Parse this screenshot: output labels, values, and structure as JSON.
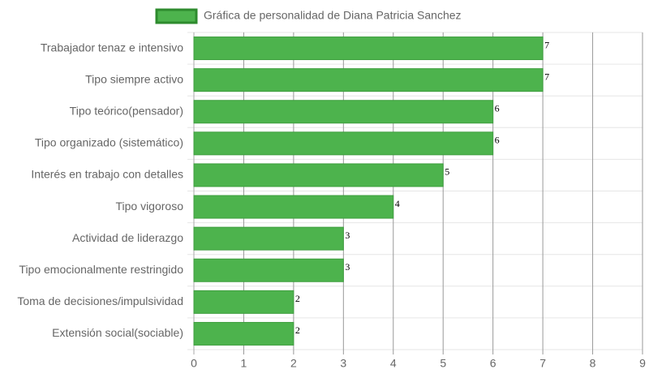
{
  "chart_data": {
    "type": "hbar",
    "categories": [
      "Trabajador tenaz e intensivo",
      "Tipo siempre activo",
      "Tipo teórico(pensador)",
      "Tipo organizado (sistemático)",
      "Interés en trabajo con detalles",
      "Tipo vigoroso",
      "Actividad de liderazgo",
      "Tipo emocionalmente restringido",
      "Toma de decisiones/impulsividad",
      "Extensión social(sociable)"
    ],
    "series": [
      {
        "name": "Gráfica de personalidad de Diana Patricia Sanchez",
        "color": "#4db34d",
        "values": [
          7,
          7,
          6,
          6,
          5,
          4,
          3,
          3,
          2,
          2
        ]
      }
    ],
    "xlim": [
      0,
      9
    ],
    "xticks": [
      0,
      1,
      2,
      3,
      4,
      5,
      6,
      7,
      8,
      9
    ],
    "grid": true,
    "legend": "top"
  }
}
